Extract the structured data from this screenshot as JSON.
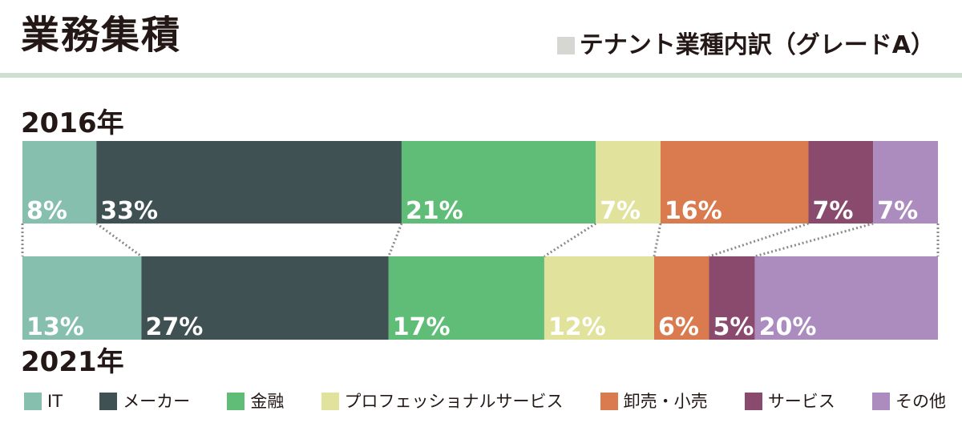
{
  "header": {
    "title": "業務集積",
    "subtitle": "テナント業種内訳（グレードA）"
  },
  "chart_data": {
    "type": "bar",
    "stacked": true,
    "orientation": "horizontal",
    "title": "テナント業種内訳（グレードA）",
    "unit": "%",
    "categories": [
      "2016年",
      "2021年"
    ],
    "series": [
      {
        "name": "IT",
        "color": "#86bfae",
        "values": [
          8,
          13
        ]
      },
      {
        "name": "メーカー",
        "color": "#3f5152",
        "values": [
          33,
          27
        ]
      },
      {
        "name": "金融",
        "color": "#60bd78",
        "values": [
          21,
          17
        ]
      },
      {
        "name": "プロフェッショナルサービス",
        "color": "#e1e29b",
        "values": [
          7,
          12
        ]
      },
      {
        "name": "卸売・小売",
        "color": "#d97b4f",
        "values": [
          16,
          6
        ]
      },
      {
        "name": "サービス",
        "color": "#8a4a6d",
        "values": [
          7,
          5
        ]
      },
      {
        "name": "その他",
        "color": "#ac8bbf",
        "values": [
          7,
          20
        ]
      }
    ],
    "labels_2016": [
      "8%",
      "33%",
      "21%",
      "7%",
      "16%",
      "7%",
      "7%"
    ],
    "labels_2021": [
      "13%",
      "27%",
      "17%",
      "12%",
      "6%",
      "5%",
      "20%"
    ],
    "legend_position": "bottom",
    "grid": false
  }
}
